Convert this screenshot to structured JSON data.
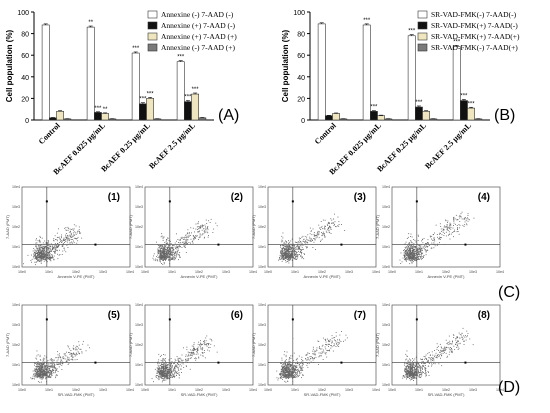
{
  "panel_labels": {
    "a": "(A)",
    "b": "(B)",
    "c": "(C)",
    "d": "(D)"
  },
  "star_label": "***",
  "chart_data": [
    {
      "id": "A",
      "type": "bar",
      "ylabel": "Cell population (%)",
      "ylim": [
        0,
        100
      ],
      "yticks": [
        0,
        20,
        40,
        60,
        80,
        100
      ],
      "categories": [
        "Control",
        "BcAEF 0.025 µg/mL",
        "BcAEF 0.25 µg/mL",
        "BcAEF 2.5 µg/mL"
      ],
      "legend_position": "top-right",
      "series": [
        {
          "name": "Annexine (-) 7-AAD (-)",
          "color": "#ffffff",
          "values": [
            88,
            86,
            62,
            54
          ],
          "errors": [
            1,
            1,
            1,
            1
          ],
          "stars": [
            "",
            "**",
            "***",
            "***"
          ]
        },
        {
          "name": "Annexine (+) 7-AAD (-)",
          "color": "#111111",
          "values": [
            2,
            7,
            15,
            17
          ],
          "errors": [
            0.3,
            0.6,
            1,
            1
          ],
          "stars": [
            "",
            "***",
            "***",
            "***"
          ]
        },
        {
          "name": "Annexine (+) 7-AAD (+)",
          "color": "#efe6bf",
          "values": [
            8,
            6,
            20,
            24
          ],
          "errors": [
            0.6,
            0.6,
            1,
            1
          ],
          "stars": [
            "",
            "**",
            "***",
            "***"
          ]
        },
        {
          "name": "Annexine (-) 7-AAD (+)",
          "color": "#7a7a7a",
          "values": [
            1,
            1,
            1,
            2
          ],
          "errors": [
            0.2,
            0.2,
            0.2,
            0.3
          ],
          "stars": [
            "",
            "",
            "",
            ""
          ]
        }
      ]
    },
    {
      "id": "B",
      "type": "bar",
      "ylabel": "Cell population (%)",
      "ylim": [
        0,
        100
      ],
      "yticks": [
        0,
        20,
        40,
        60,
        80,
        100
      ],
      "categories": [
        "Control",
        "BcAEF 0.025 µg/mL",
        "BcAEF 0.25 µg/mL",
        "BcAEF 2.5 µg/mL"
      ],
      "legend_position": "top-right",
      "series": [
        {
          "name": "SR-VAD-FMK(-) 7-AAD(-)",
          "color": "#ffffff",
          "values": [
            89,
            88,
            78,
            68
          ],
          "errors": [
            1,
            1,
            1,
            1
          ],
          "stars": [
            "",
            "***",
            "***",
            "***"
          ]
        },
        {
          "name": "SR-VAD-FMK(+) 7-AAD(-)",
          "color": "#111111",
          "values": [
            4,
            8,
            12,
            18
          ],
          "errors": [
            0.3,
            0.6,
            1,
            1
          ],
          "stars": [
            "",
            "***",
            "***",
            "***"
          ]
        },
        {
          "name": "SR-VAD-FMK(+) 7-AAD(+)",
          "color": "#efe6bf",
          "values": [
            6,
            4,
            8,
            11
          ],
          "errors": [
            0.5,
            0.5,
            0.6,
            0.8
          ],
          "stars": [
            "",
            "",
            "",
            "***"
          ]
        },
        {
          "name": "SR-VAD-FMK(-) 7-AAD(+)",
          "color": "#7a7a7a",
          "values": [
            1,
            1,
            1,
            1
          ],
          "errors": [
            0.2,
            0.2,
            0.2,
            0.2
          ],
          "stars": [
            "",
            "",
            "",
            ""
          ]
        }
      ]
    },
    {
      "id": "C",
      "type": "scatter",
      "ylabel": "7-AAD (PMT)",
      "xlabel": "Annexin V-PE (PMT)",
      "tick_labels": [
        "10e0",
        "10e1",
        "10e2",
        "10e3",
        "10e4"
      ],
      "plots": [
        {
          "label": "(1)",
          "spread": 0.2
        },
        {
          "label": "(2)",
          "spread": 0.35
        },
        {
          "label": "(3)",
          "spread": 0.5
        },
        {
          "label": "(4)",
          "spread": 0.6
        }
      ]
    },
    {
      "id": "D",
      "type": "scatter",
      "ylabel": "7-AAD (PMT)",
      "xlabel": "SR-VAD-FMK (PMT)",
      "tick_labels": [
        "10e0",
        "10e1",
        "10e2",
        "10e3",
        "10e4"
      ],
      "plots": [
        {
          "label": "(5)",
          "spread": 0.25
        },
        {
          "label": "(6)",
          "spread": 0.4
        },
        {
          "label": "(7)",
          "spread": 0.5
        },
        {
          "label": "(8)",
          "spread": 0.6
        }
      ]
    }
  ]
}
